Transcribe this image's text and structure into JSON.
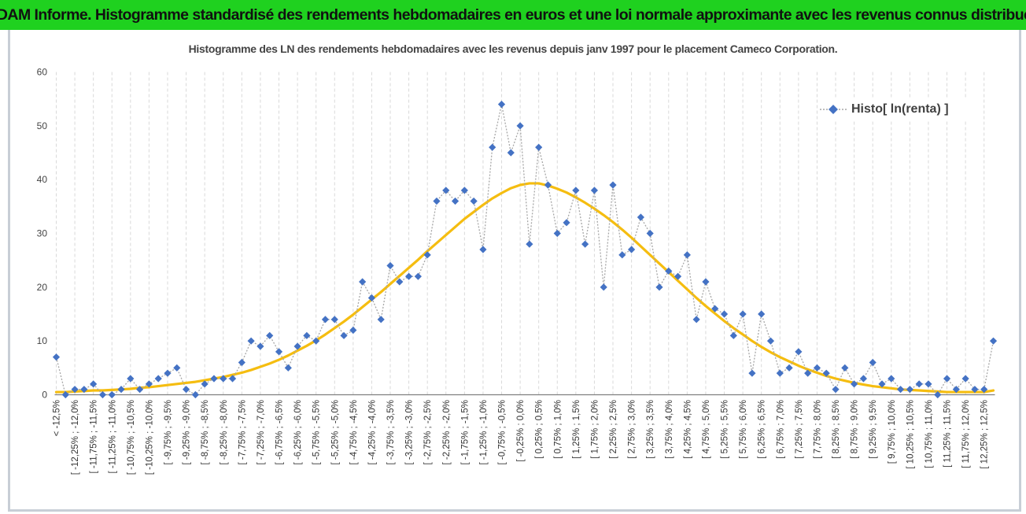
{
  "banner": {
    "title": "ADAM Informe. Histogramme standardisé des rendements hebdomadaires en euros et une loi normale approximante avec les revenus connus distribués"
  },
  "colors": {
    "banner": "#1fd11f",
    "histo_marker": "#4472c4",
    "histo_line": "#a6a6a6",
    "normal_curve": "#f5bd10",
    "grid": "#d9d9d9"
  },
  "chart_data": {
    "type": "line",
    "title": "Histogramme des LN des rendements hebdomadaires avec les revenus depuis janv 1997 pour le placement Cameco Corporation.",
    "xlabel": "",
    "ylabel": "",
    "ylim": [
      0,
      60
    ],
    "yticks": [
      0,
      10,
      20,
      30,
      40,
      50,
      60
    ],
    "grid": "vertical-dashed",
    "legend_position": "top-right",
    "tick_labels": [
      "< -12,5%",
      "[ -12,25% ; -12,0%",
      "[ -11,75% ; -11,5%",
      "[ -11,25% ; -11,0%",
      "[ -10,75% ; -10,5%",
      "[ -10,25% ; -10,0%",
      "[ -9,75% ; -9,5%",
      "[ -9,25% ; -9,0%",
      "[ -8,75% ; -8,5%",
      "[ -8,25% ; -8,0%",
      "[ -7,75% ; -7,5%",
      "[ -7,25% ; -7,0%",
      "[ -6,75% ; -6,5%",
      "[ -6,25% ; -6,0%",
      "[ -5,75% ; -5,5%",
      "[ -5,25% ; -5,0%",
      "[ -4,75% ; -4,5%",
      "[ -4,25% ; -4,0%",
      "[ -3,75% ; -3,5%",
      "[ -3,25% ; -3,0%",
      "[ -2,75% ; -2,5%",
      "[ -2,25% ; -2,0%",
      "[ -1,75% ; -1,5%",
      "[ -1,25% ; -1,0%",
      "[ -0,75% ; -0,5%",
      "[ -0,25% ; 0,0%",
      "[ 0,25% ; 0,5%",
      "[ 0,75% ; 1,0%",
      "[ 1,25% ; 1,5%",
      "[ 1,75% ; 2,0%",
      "[ 2,25% ; 2,5%",
      "[ 2,75% ; 3,0%",
      "[ 3,25% ; 3,5%",
      "[ 3,75% ; 4,0%",
      "[ 4,25% ; 4,5%",
      "[ 4,75% ; 5,0%",
      "[ 5,25% ; 5,5%",
      "[ 5,75% ; 6,0%",
      "[ 6,25% ; 6,5%",
      "[ 6,75% ; 7,0%",
      "[ 7,25% ; 7,5%",
      "[ 7,75% ; 8,0%",
      "[ 8,25% ; 8,5%",
      "[ 8,75% ; 9,0%",
      "[ 9,25% ; 9,5%",
      "[ 9,75% ; 10,0%",
      "[ 10,25% ; 10,5%",
      "[ 10,75% ; 11,0%",
      "[ 11,25% ; 11,5%",
      "[ 11,75% ; 12,0%",
      "[ 12,25% ; 12,5%"
    ],
    "series": [
      {
        "name": "Histo[ ln(renta) ]",
        "type": "scatter-line",
        "values": [
          7,
          0,
          1,
          1,
          2,
          0,
          0,
          1,
          3,
          1,
          2,
          3,
          4,
          5,
          1,
          0,
          2,
          3,
          3,
          3,
          6,
          10,
          9,
          11,
          8,
          5,
          9,
          11,
          10,
          14,
          14,
          11,
          12,
          21,
          18,
          14,
          24,
          21,
          22,
          22,
          26,
          36,
          38,
          36,
          38,
          36,
          27,
          46,
          54,
          45,
          50,
          28,
          46,
          39,
          30,
          32,
          38,
          28,
          38,
          20,
          39,
          26,
          27,
          33,
          30,
          20,
          23,
          22,
          26,
          14,
          21,
          16,
          15,
          11,
          15,
          4,
          15,
          10,
          4,
          5,
          8,
          4,
          5,
          4,
          1,
          5,
          2,
          3,
          6,
          2,
          3,
          1,
          1,
          2,
          2,
          0,
          3,
          1,
          3,
          1,
          1,
          10
        ]
      },
      {
        "type": "line",
        "values": [
          0.5,
          0.5,
          0.6,
          0.7,
          0.8,
          0.8,
          0.9,
          1.0,
          1.1,
          1.3,
          1.4,
          1.6,
          1.8,
          2.0,
          2.2,
          2.4,
          2.7,
          3.0,
          3.3,
          3.7,
          4.1,
          4.6,
          5.2,
          5.8,
          6.5,
          7.3,
          8.2,
          9.1,
          10.1,
          11.2,
          12.4,
          13.6,
          14.9,
          16.3,
          17.7,
          19.1,
          20.6,
          22.1,
          23.6,
          25.1,
          26.7,
          28.2,
          29.7,
          31.2,
          32.7,
          34.0,
          35.3,
          36.5,
          37.5,
          38.4,
          39.0,
          39.3,
          39.3,
          38.9,
          38.3,
          37.6,
          36.7,
          35.7,
          34.6,
          33.4,
          32.1,
          30.7,
          29.2,
          27.6,
          26.0,
          24.4,
          22.8,
          21.2,
          19.6,
          18.0,
          16.5,
          15.1,
          13.7,
          12.4,
          11.2,
          10.0,
          8.9,
          7.9,
          7.0,
          6.2,
          5.4,
          4.7,
          4.1,
          3.5,
          3.0,
          2.6,
          2.2,
          1.9,
          1.6,
          1.4,
          1.2,
          1.0,
          0.9,
          0.8,
          0.7,
          0.6,
          0.5,
          0.5,
          0.5,
          0.5,
          0.5,
          0.8
        ]
      }
    ]
  }
}
